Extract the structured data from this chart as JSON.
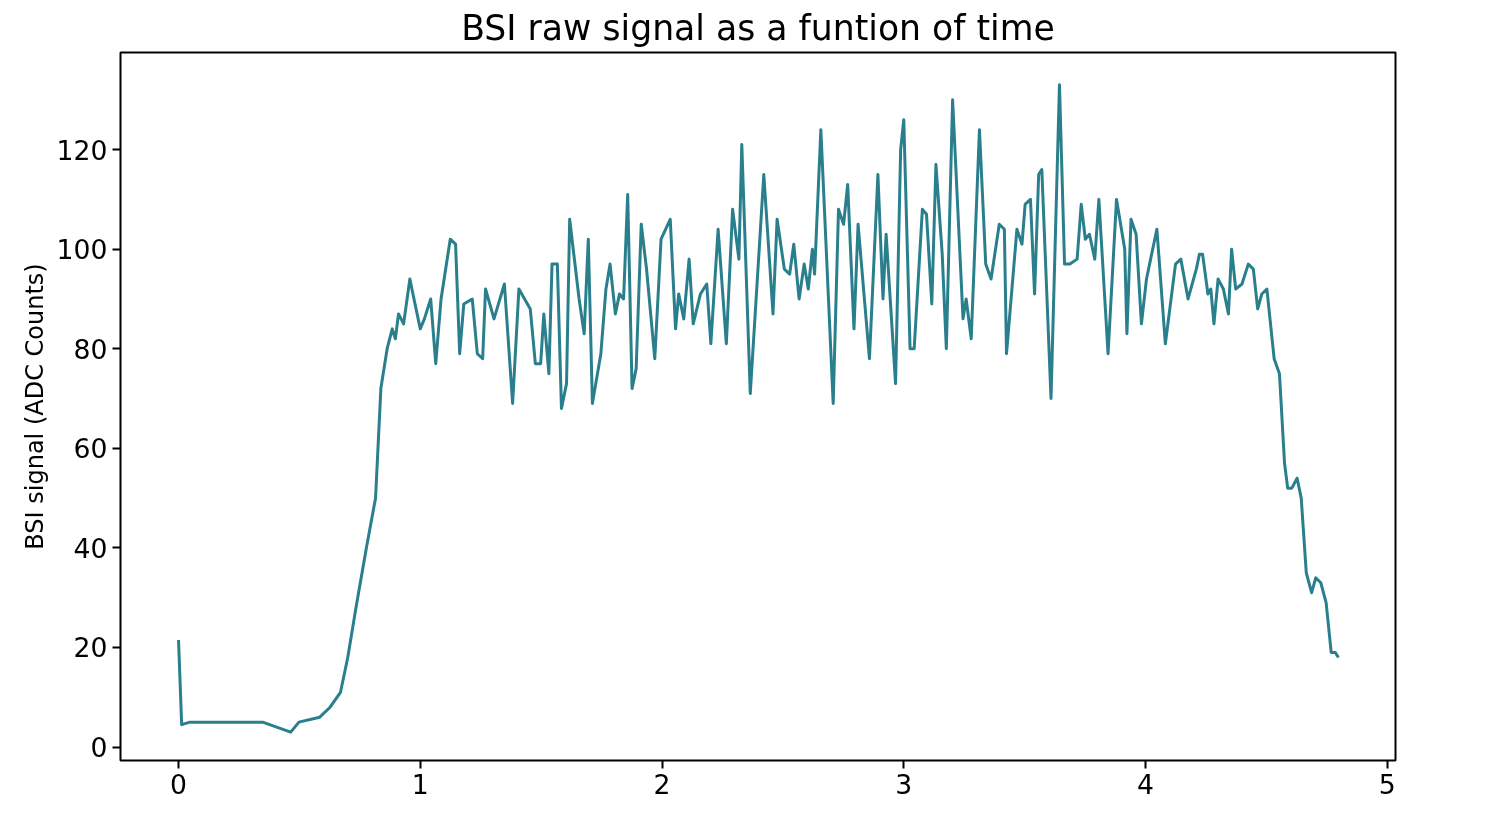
{
  "chart_data": {
    "type": "line",
    "title": "BSI raw signal as a funtion of time",
    "ylabel": "BSI signal (ADC Counts)",
    "xlim": [
      -0.24,
      5.034
    ],
    "ylim": [
      -2.7,
      139.5
    ],
    "xticks": [
      0,
      1,
      2,
      3,
      4,
      5
    ],
    "yticks": [
      0,
      20,
      40,
      60,
      80,
      100,
      120
    ],
    "grid": false,
    "series": [
      {
        "color": "#2a7f8c",
        "x": [
          0,
          0.013,
          0.047,
          0.219,
          0.348,
          0.464,
          0.498,
          0.584,
          0.627,
          0.67,
          0.7,
          0.734,
          0.777,
          0.815,
          0.837,
          0.863,
          0.884,
          0.897,
          0.91,
          0.931,
          0.957,
          0.974,
          1.0,
          1.017,
          1.043,
          1.064,
          1.086,
          1.124,
          1.146,
          1.163,
          1.18,
          1.215,
          1.236,
          1.258,
          1.27,
          1.305,
          1.348,
          1.382,
          1.408,
          1.455,
          1.476,
          1.498,
          1.511,
          1.532,
          1.545,
          1.567,
          1.584,
          1.605,
          1.618,
          1.657,
          1.678,
          1.695,
          1.712,
          1.747,
          1.768,
          1.785,
          1.807,
          1.824,
          1.841,
          1.858,
          1.876,
          1.893,
          1.914,
          1.936,
          1.97,
          1.996,
          2.034,
          2.056,
          2.069,
          2.09,
          2.112,
          2.129,
          2.159,
          2.185,
          2.202,
          2.232,
          2.266,
          2.292,
          2.318,
          2.33,
          2.365,
          2.421,
          2.459,
          2.476,
          2.506,
          2.528,
          2.545,
          2.567,
          2.588,
          2.605,
          2.622,
          2.631,
          2.657,
          2.708,
          2.73,
          2.751,
          2.768,
          2.794,
          2.811,
          2.858,
          2.893,
          2.914,
          2.927,
          2.966,
          2.987,
          3.0,
          3.026,
          3.043,
          3.077,
          3.094,
          3.116,
          3.133,
          3.159,
          3.176,
          3.202,
          3.245,
          3.258,
          3.279,
          3.313,
          3.339,
          3.361,
          3.395,
          3.416,
          3.425,
          3.468,
          3.489,
          3.502,
          3.524,
          3.541,
          3.558,
          3.571,
          3.609,
          3.644,
          3.665,
          3.687,
          3.717,
          3.734,
          3.751,
          3.768,
          3.79,
          3.807,
          3.845,
          3.88,
          3.914,
          3.923,
          3.94,
          3.961,
          3.983,
          4.004,
          4.021,
          4.047,
          4.082,
          4.124,
          4.146,
          4.176,
          4.21,
          4.223,
          4.236,
          4.258,
          4.27,
          4.283,
          4.3,
          4.322,
          4.343,
          4.356,
          4.373,
          4.399,
          4.425,
          4.446,
          4.464,
          4.481,
          4.502,
          4.532,
          4.554,
          4.575,
          4.588,
          4.605,
          4.627,
          4.644,
          4.665,
          4.687,
          4.704,
          4.725,
          4.747,
          4.768,
          4.785,
          4.798
        ],
        "values": [
          21.5,
          4.5,
          5,
          5,
          5,
          3,
          5,
          6,
          8,
          11,
          18,
          28,
          40,
          50,
          72,
          80,
          84,
          82,
          87,
          85,
          94,
          90,
          84,
          86,
          90,
          77,
          90,
          102,
          101,
          79,
          89,
          90,
          79,
          78,
          92,
          86,
          93,
          69,
          92,
          88,
          77,
          77,
          87,
          75,
          97,
          97,
          68,
          73,
          106,
          90,
          83,
          102,
          69,
          79,
          92,
          97,
          87,
          91,
          90,
          111,
          72,
          76,
          105,
          96,
          78,
          102,
          106,
          84,
          91,
          86,
          98,
          85,
          91,
          93,
          81,
          104,
          81,
          108,
          98,
          121,
          71,
          115,
          87,
          106,
          96,
          95,
          101,
          90,
          97,
          92,
          100,
          95,
          124,
          69,
          108,
          105,
          113,
          84,
          105,
          78,
          115,
          90,
          103,
          73,
          120,
          126,
          80,
          80,
          108,
          107,
          89,
          117,
          99,
          80,
          130,
          86,
          90,
          82,
          124,
          97,
          94,
          105,
          104,
          79,
          104,
          101,
          109,
          110,
          91,
          115,
          116,
          70,
          133,
          97,
          97,
          98,
          109,
          102,
          103,
          98,
          110,
          79,
          110,
          100,
          83,
          106,
          103,
          85,
          94,
          98,
          104,
          81,
          97,
          98,
          90,
          96,
          99,
          99,
          91,
          92,
          85,
          94,
          92,
          87,
          100,
          92,
          93,
          97,
          96,
          88,
          91,
          92,
          78,
          75,
          57,
          52,
          52,
          54,
          50,
          35,
          31,
          34,
          33,
          29,
          19,
          19,
          18
        ]
      }
    ]
  }
}
